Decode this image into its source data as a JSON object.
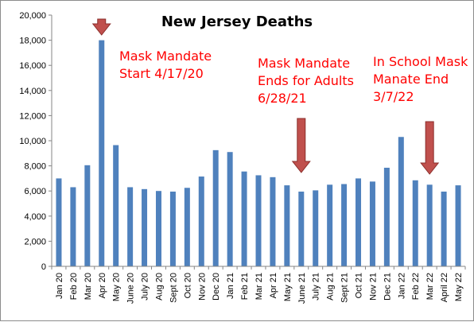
{
  "chart_data": {
    "type": "bar",
    "title": "New Jersey Deaths",
    "xlabel": "",
    "ylabel": "",
    "ylim": [
      0,
      20000
    ],
    "ytick_step": 2000,
    "ytick_labels": [
      "0",
      "2,000",
      "4,000",
      "6,000",
      "8,000",
      "10,000",
      "12,000",
      "14,000",
      "16,000",
      "18,000",
      "20,000"
    ],
    "grid": false,
    "legend": "none",
    "bar_color": "#4f81bd",
    "categories": [
      "Jan 20",
      "Feb 20",
      "Mar 20",
      "Apr 20",
      "May 20",
      "June 20",
      "July 20",
      "Aug 20",
      "Sept 20",
      "Oct 20",
      "Nov 20",
      "Dec 20",
      "Jan 21",
      "Feb 21",
      "Mar 21",
      "Apr 21",
      "May 21",
      "June 21",
      "July 21",
      "Aug 21",
      "Sept 21",
      "Oct 21",
      "Nov 21",
      "Dec 21",
      "Jan 22",
      "Feb 22",
      "Mar 22",
      "April 22",
      "May 22"
    ],
    "values": [
      7000,
      6300,
      8050,
      18000,
      9650,
      6300,
      6150,
      6000,
      5950,
      6250,
      7150,
      9250,
      9100,
      7550,
      7250,
      7100,
      6450,
      5950,
      6050,
      6500,
      6550,
      7000,
      6750,
      7850,
      10300,
      6850,
      6500,
      5950,
      6450
    ],
    "annotations": [
      {
        "lines": [
          "Mask Mandate",
          "Start 4/17/20"
        ],
        "color": "#ff0000",
        "arrow_category": "Apr 20"
      },
      {
        "lines": [
          "Mask Mandate",
          "Ends for Adults",
          "6/28/21"
        ],
        "color": "#ff0000",
        "arrow_category": "June 21"
      },
      {
        "lines": [
          "In School Mask",
          "Manate End",
          "3/7/22"
        ],
        "color": "#ff0000",
        "arrow_category": "Mar 22"
      }
    ],
    "arrow_color": "#c0504d"
  }
}
